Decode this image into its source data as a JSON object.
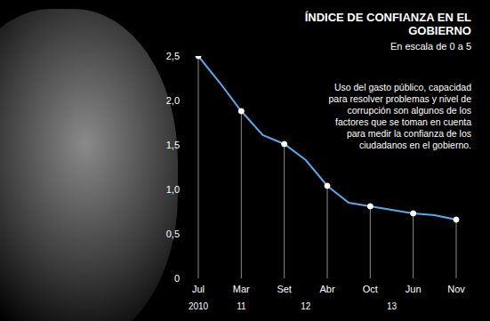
{
  "chart_data": {
    "type": "line",
    "title": "ÍNDICE DE CONFIANZA EN EL GOBIERNO",
    "subtitle": "En escala de 0 a 5",
    "annotation": "Uso del gasto público, capacidad para resolver problemas y nivel de corrupción son algunos de los factores que se toman en cuenta para medir la confianza de los ciudadanos en el gobierno.",
    "categories": [
      "Jul",
      null,
      "Mar",
      null,
      "Set",
      null,
      "Abr",
      null,
      "Oct",
      null,
      "Jun",
      null,
      "Nov"
    ],
    "year_labels": [
      "2010",
      null,
      "11",
      null,
      null,
      "12",
      null,
      null,
      null,
      "13",
      null,
      null,
      null
    ],
    "values": [
      2.5,
      2.2,
      1.88,
      1.61,
      1.51,
      1.33,
      1.04,
      0.85,
      0.81,
      0.77,
      0.73,
      0.71,
      0.66
    ],
    "color": "#5aa9e6",
    "marker": "circle",
    "ylim": [
      0,
      2.5
    ],
    "yticks": [
      0,
      {
        "value": 0.5,
        "label": "0,5"
      },
      {
        "value": 1,
        "label": "1,0"
      },
      {
        "value": 1.5,
        "label": "1,5"
      },
      {
        "value": 2,
        "label": "2,0"
      },
      {
        "value": 2.5,
        "label": "2,5"
      }
    ],
    "grid": false,
    "legend": false
  }
}
